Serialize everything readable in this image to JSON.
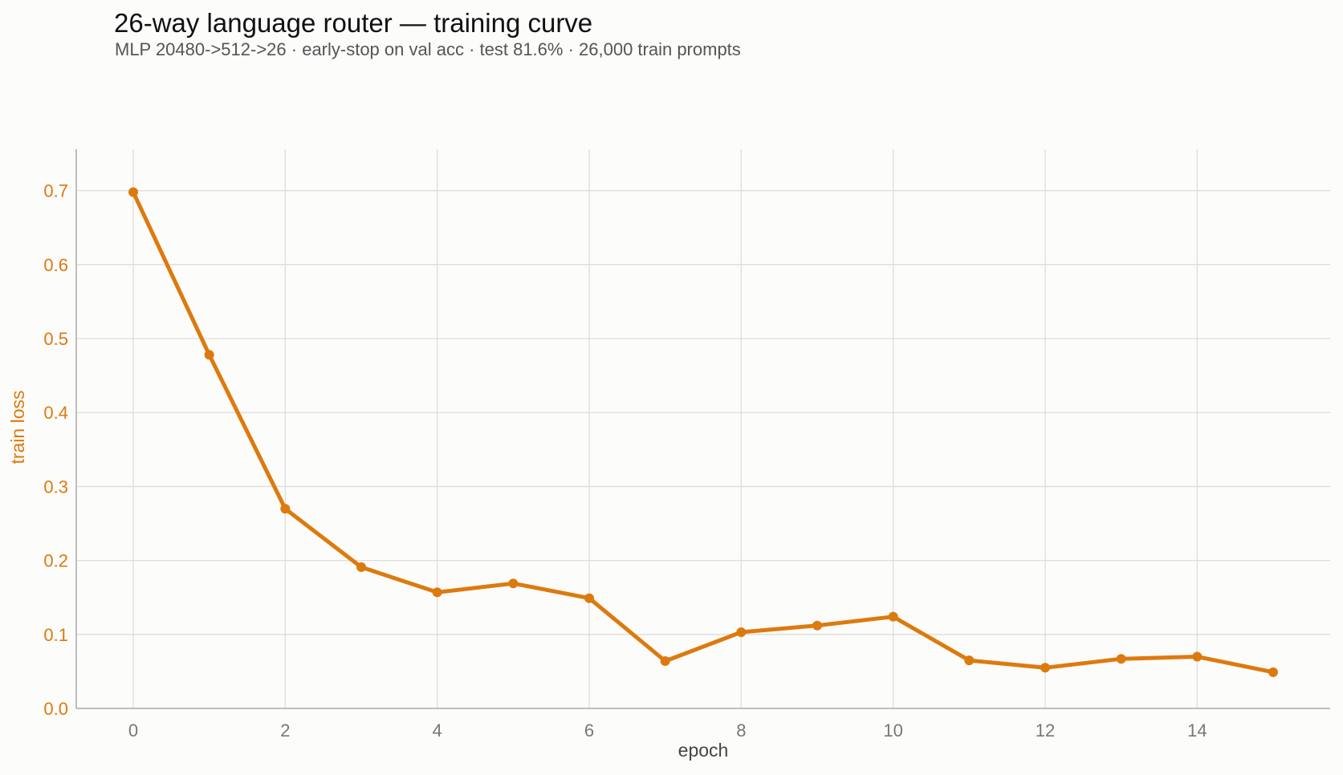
{
  "chart_data": {
    "type": "line",
    "title": "26-way language router — training curve",
    "subtitle": "MLP 20480->512->26 · early-stop on val acc · test 81.6% · 26,000 train prompts",
    "xlabel": "epoch",
    "ylabel": "train loss",
    "xlim": [
      -0.75,
      15.75
    ],
    "ylim": [
      0,
      0.756
    ],
    "xticks": [
      0,
      2,
      4,
      6,
      8,
      10,
      12,
      14
    ],
    "yticks": [
      0.0,
      0.1,
      0.2,
      0.3,
      0.4,
      0.5,
      0.6,
      0.7
    ],
    "grid": true,
    "series": [
      {
        "color": "#dd7a0e",
        "x": [
          0,
          1,
          2,
          3,
          4,
          5,
          6,
          7,
          8,
          9,
          10,
          11,
          12,
          13,
          14,
          15
        ],
        "y": [
          0.698,
          0.478,
          0.27,
          0.191,
          0.157,
          0.169,
          0.149,
          0.064,
          0.103,
          0.112,
          0.124,
          0.065,
          0.055,
          0.067,
          0.07,
          0.049
        ]
      }
    ],
    "colors": {
      "line": "#dd7a0e",
      "ylabel": "#dd7a0e",
      "ytick": "#dd7a0e",
      "xtick": "#777777",
      "xlabel": "#444444",
      "grid": "#dddddd",
      "axis": "#aaaaaa"
    }
  }
}
